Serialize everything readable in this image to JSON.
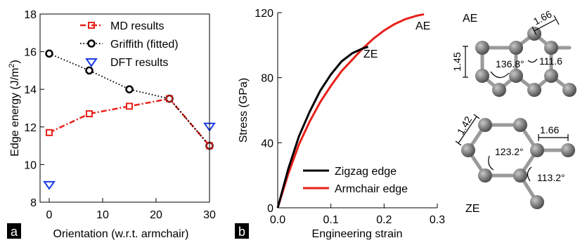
{
  "chart_data": [
    {
      "panel_label": "a",
      "type": "line",
      "xlabel": "Orientation (w.r.t. armchair)",
      "ylabel": "Edge energy (J/m²)",
      "ylabel_parts": {
        "main": "Edge energy (J/m",
        "sup": "2",
        "end": ")"
      },
      "xlim": [
        0,
        30
      ],
      "ylim": [
        8,
        18
      ],
      "xticks": [
        0,
        10,
        20,
        30
      ],
      "yticks": [
        8,
        10,
        12,
        14,
        16,
        18
      ],
      "grid": false,
      "legend_position": "top-right",
      "series": [
        {
          "name": "MD results",
          "style": "dash-dot",
          "marker": "square",
          "color": "#e8201a",
          "x": [
            0,
            7.5,
            15,
            22.5,
            30
          ],
          "y": [
            11.7,
            12.7,
            13.1,
            13.5,
            11.0
          ]
        },
        {
          "name": "Griffith (fitted)",
          "style": "dotted",
          "marker": "circle",
          "color": "#000000",
          "x": [
            0,
            7.5,
            15,
            22.5,
            30
          ],
          "y": [
            15.9,
            15.0,
            14.0,
            13.5,
            11.0
          ]
        },
        {
          "name": "DFT results",
          "style": "none",
          "marker": "triangle-down",
          "color": "#1a3ae8",
          "x": [
            0,
            30
          ],
          "y": [
            8.9,
            12.0
          ]
        }
      ]
    },
    {
      "panel_label": "b",
      "type": "line",
      "xlabel": "Engineering strain",
      "ylabel": "Stress (GPa)",
      "xlim": [
        0,
        0.3
      ],
      "ylim": [
        0,
        120
      ],
      "xticks": [
        0.0,
        0.1,
        0.2,
        0.3
      ],
      "xtick_labels": [
        "0.0",
        "0.1",
        "0.2",
        "0.3"
      ],
      "yticks": [
        0,
        40,
        80,
        120
      ],
      "grid": false,
      "legend_position": "bottom-right",
      "annotations": [
        "ZE",
        "AE"
      ],
      "series": [
        {
          "name": "Zigzag edge",
          "color": "#000000",
          "x": [
            0,
            0.02,
            0.04,
            0.06,
            0.08,
            0.1,
            0.12,
            0.14,
            0.16,
            0.17
          ],
          "y": [
            0,
            24,
            44,
            59,
            72,
            82,
            90,
            95,
            98,
            99
          ]
        },
        {
          "name": "Armchair edge",
          "color": "#e8201a",
          "x": [
            0,
            0.02,
            0.04,
            0.06,
            0.08,
            0.1,
            0.12,
            0.14,
            0.16,
            0.18,
            0.2,
            0.22,
            0.24,
            0.26,
            0.275
          ],
          "y": [
            0,
            21,
            39,
            53,
            65,
            75,
            84,
            91,
            98,
            104,
            109,
            113,
            116,
            118,
            119
          ]
        }
      ]
    }
  ],
  "structures": {
    "ae": {
      "label": "AE",
      "bond_top": "1.66",
      "bond_left": "1.45",
      "angle_inner": "136.8°",
      "angle_right": "111.6"
    },
    "ze": {
      "label": "ZE",
      "bond_left": "1.42",
      "bond_right": "1.66",
      "angle_inner": "123.2°",
      "angle_right": "113.2°"
    }
  },
  "colors": {
    "red": "#e8201a",
    "black": "#000000",
    "blue": "#1a3ae8",
    "atom": "#808080",
    "bond": "#9a9a9a"
  }
}
